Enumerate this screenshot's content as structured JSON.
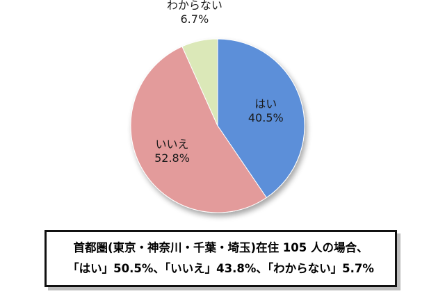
{
  "chart_data": {
    "type": "pie",
    "slices": [
      {
        "label": "はい",
        "value": 40.5,
        "display": "40.5%",
        "color": "#5b8fd9"
      },
      {
        "label": "いいえ",
        "value": 52.8,
        "display": "52.8%",
        "color": "#e39b9b"
      },
      {
        "label": "わからない",
        "value": 6.7,
        "display": "6.7%",
        "color": "#dbe8b8"
      }
    ],
    "start": "12 o'clock",
    "direction": "clockwise",
    "legend": "none"
  },
  "note": {
    "line1": "首都圏(東京・神奈川・千葉・埼玉)在住 105 人の場合、",
    "line2": "「はい」50.5%、「いいえ」43.8%、「わからない」5.7%"
  }
}
